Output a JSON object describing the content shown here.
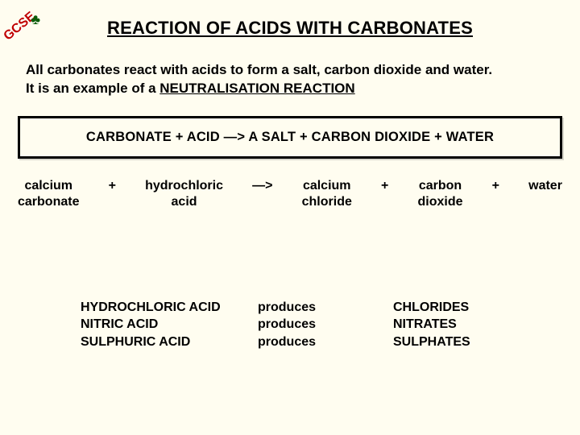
{
  "colors": {
    "background": "#fffdf0",
    "text": "#000000",
    "logo_red": "#c00000",
    "tree_green": "#0a5c0a",
    "box_border": "#000000"
  },
  "logo": {
    "text": "GCSE",
    "tree_glyph": "♣"
  },
  "title": "REACTION OF ACIDS WITH CARBONATES",
  "intro": {
    "line1": "All carbonates react with acids to form a salt, carbon dioxide and water.",
    "line2_prefix": "It is an example of a ",
    "line2_highlight": "NEUTRALISATION REACTION"
  },
  "general_equation": "CARBONATE   +   ACID   —>   A SALT   +   CARBON DIOXIDE   +   WATER",
  "example_equation": {
    "r1": "calcium\ncarbonate",
    "op1": "+",
    "r2": "hydrochloric\nacid",
    "arrow": "—>",
    "p1": "calcium\nchloride",
    "op2": "+",
    "p2": "carbon\ndioxide",
    "op3": "+",
    "p3": "water"
  },
  "produces_table": {
    "acids": "HYDROCHLORIC ACID\nNITRIC ACID\nSULPHURIC ACID",
    "verb": "produces\nproduces\nproduces",
    "salts": "CHLORIDES\nNITRATES\nSULPHATES"
  }
}
